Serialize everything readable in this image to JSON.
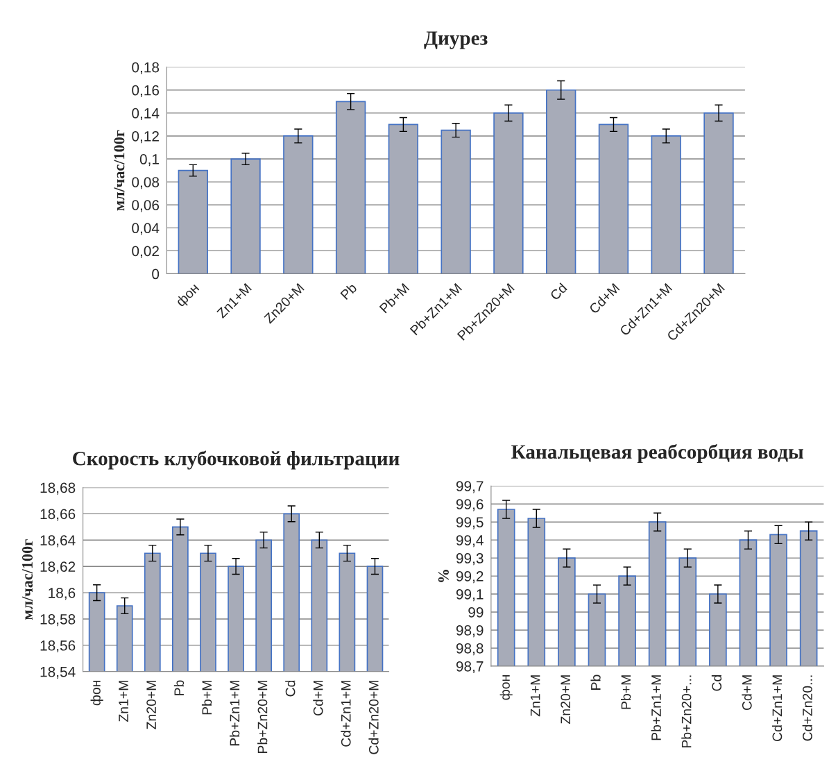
{
  "chart_data": [
    {
      "type": "bar",
      "title": "Диурез",
      "ylabel": "мл/час/100г",
      "categories": [
        "фон",
        "Zn1+M",
        "Zn20+M",
        "Pb",
        "Pb+M",
        "Pb+Zn1+M",
        "Pb+Zn20+M",
        "Cd",
        "Cd+M",
        "Cd+Zn1+M",
        "Cd+Zn20+M"
      ],
      "values": [
        0.09,
        0.1,
        0.12,
        0.15,
        0.13,
        0.125,
        0.14,
        0.16,
        0.13,
        0.12,
        0.14
      ],
      "errors": [
        0.005,
        0.005,
        0.006,
        0.007,
        0.006,
        0.006,
        0.007,
        0.008,
        0.006,
        0.006,
        0.007
      ],
      "color": "#a7abb8",
      "ylim": [
        0,
        0.18
      ],
      "yticks": [
        {
          "value": 0,
          "label": "0"
        },
        {
          "value": 0.02,
          "label": "0,02"
        },
        {
          "value": 0.04,
          "label": "0,04"
        },
        {
          "value": 0.06,
          "label": "0,06"
        },
        {
          "value": 0.08,
          "label": "0,08"
        },
        {
          "value": 0.1,
          "label": "0,1"
        },
        {
          "value": 0.12,
          "label": "0,12"
        },
        {
          "value": 0.14,
          "label": "0,14"
        },
        {
          "value": 0.16,
          "label": "0,16"
        },
        {
          "value": 0.18,
          "label": "0,18"
        }
      ],
      "grid": "y"
    },
    {
      "type": "bar",
      "title": "Скорость клубочковой фильтрации",
      "ylabel": "мл/час/100г",
      "categories": [
        "фон",
        "Zn1+M",
        "Zn20+M",
        "Pb",
        "Pb+M",
        "Pb+Zn1+M",
        "Pb+Zn20+M",
        "Cd",
        "Cd+M",
        "Cd+Zn1+M",
        "Cd+Zn20+M"
      ],
      "values": [
        18.6,
        18.59,
        18.63,
        18.65,
        18.63,
        18.62,
        18.64,
        18.66,
        18.64,
        18.63,
        18.62
      ],
      "errors": [
        0.006,
        0.006,
        0.006,
        0.006,
        0.006,
        0.006,
        0.006,
        0.006,
        0.006,
        0.006,
        0.006
      ],
      "color": "#a7abb8",
      "ylim": [
        18.54,
        18.68
      ],
      "yticks": [
        {
          "value": 18.54,
          "label": "18,54"
        },
        {
          "value": 18.56,
          "label": "18,56"
        },
        {
          "value": 18.58,
          "label": "18,58"
        },
        {
          "value": 18.6,
          "label": "18,6"
        },
        {
          "value": 18.62,
          "label": "18,62"
        },
        {
          "value": 18.64,
          "label": "18,64"
        },
        {
          "value": 18.66,
          "label": "18,66"
        },
        {
          "value": 18.68,
          "label": "18,68"
        }
      ],
      "grid": "y"
    },
    {
      "type": "bar",
      "title": "Канальцевая реабсорбция воды",
      "ylabel": "%",
      "categories": [
        "фон",
        "Zn1+M",
        "Zn20+M",
        "Pb",
        "Pb+M",
        "Pb+Zn1+M",
        "Pb+Zn20+...",
        "Cd",
        "Cd+M",
        "Cd+Zn1+M",
        "Cd+Zn20..."
      ],
      "values": [
        99.57,
        99.52,
        99.3,
        99.1,
        99.2,
        99.5,
        99.3,
        99.1,
        99.4,
        99.43,
        99.45
      ],
      "errors": [
        0.05,
        0.05,
        0.05,
        0.05,
        0.05,
        0.05,
        0.05,
        0.05,
        0.05,
        0.05,
        0.05
      ],
      "color": "#a7abb8",
      "ylim": [
        98.7,
        99.7
      ],
      "yticks": [
        {
          "value": 98.7,
          "label": "98,7"
        },
        {
          "value": 98.8,
          "label": "98,8"
        },
        {
          "value": 98.9,
          "label": "98,9"
        },
        {
          "value": 99.0,
          "label": "99"
        },
        {
          "value": 99.1,
          "label": "99,1"
        },
        {
          "value": 99.2,
          "label": "99,2"
        },
        {
          "value": 99.3,
          "label": "99,3"
        },
        {
          "value": 99.4,
          "label": "99,4"
        },
        {
          "value": 99.5,
          "label": "99,5"
        },
        {
          "value": 99.6,
          "label": "99,6"
        },
        {
          "value": 99.7,
          "label": "99,7"
        }
      ],
      "grid": "y"
    }
  ]
}
